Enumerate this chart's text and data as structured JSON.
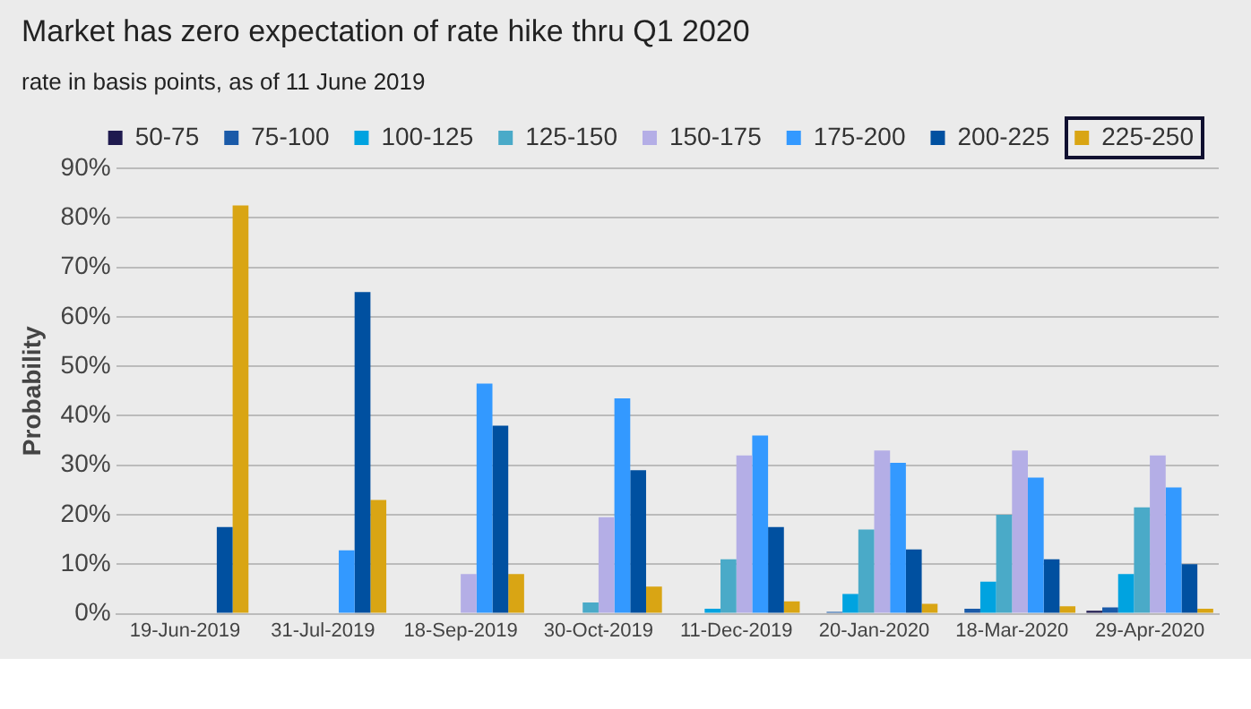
{
  "chart_data": {
    "type": "bar",
    "title": "Market has zero expectation of rate hike thru Q1 2020",
    "subtitle": "rate in basis points, as of 11 June 2019",
    "ylabel": "Probability",
    "categories": [
      "19-Jun-2019",
      "31-Jul-2019",
      "18-Sep-2019",
      "30-Oct-2019",
      "11-Dec-2019",
      "20-Jan-2020",
      "18-Mar-2020",
      "29-Apr-2020"
    ],
    "series": [
      {
        "name": "50-75",
        "color": "#1f1a4f",
        "values": [
          0,
          0,
          0,
          0,
          0,
          0,
          0,
          0.6
        ]
      },
      {
        "name": "75-100",
        "color": "#1a5aa8",
        "values": [
          0,
          0,
          0,
          0,
          0,
          0.4,
          1,
          1.3
        ]
      },
      {
        "name": "100-125",
        "color": "#00a3e0",
        "values": [
          0,
          0,
          0,
          0,
          1,
          4,
          6.5,
          8
        ]
      },
      {
        "name": "125-150",
        "color": "#4aaac8",
        "values": [
          0,
          0,
          0,
          2.3,
          11,
          17,
          20,
          21.5
        ]
      },
      {
        "name": "150-175",
        "color": "#b4aee6",
        "values": [
          0,
          0,
          8,
          19.5,
          32,
          33,
          33,
          32
        ]
      },
      {
        "name": "175-200",
        "color": "#3399ff",
        "values": [
          0,
          12.8,
          46.5,
          43.5,
          36,
          30.5,
          27.5,
          25.5
        ]
      },
      {
        "name": "200-225",
        "color": "#0050a0",
        "values": [
          17.5,
          65,
          38,
          29,
          17.5,
          13,
          11,
          10
        ]
      },
      {
        "name": "225-250",
        "color": "#d9a514",
        "values": [
          82.5,
          23,
          8,
          5.5,
          2.5,
          2,
          1.5,
          1
        ]
      }
    ],
    "ylim": [
      0,
      90
    ],
    "yticks": [
      {
        "value": 0,
        "label": "0%"
      },
      {
        "value": 10,
        "label": "10%"
      },
      {
        "value": 20,
        "label": "20%"
      },
      {
        "value": 30,
        "label": "30%"
      },
      {
        "value": 40,
        "label": "40%"
      },
      {
        "value": 50,
        "label": "50%"
      },
      {
        "value": 60,
        "label": "60%"
      },
      {
        "value": 70,
        "label": "70%"
      },
      {
        "value": 80,
        "label": "80%"
      },
      {
        "value": 90,
        "label": "90%"
      }
    ],
    "grid": "y",
    "legend": "top"
  }
}
